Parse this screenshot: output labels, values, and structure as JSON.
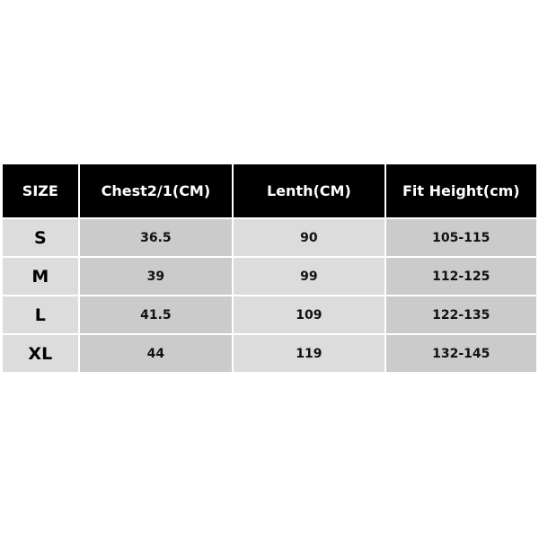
{
  "size_chart": {
    "headers": [
      "SIZE",
      "Chest2/1(CM)",
      "Lenth(CM)",
      "Fit Height(cm)"
    ],
    "rows": [
      [
        "S",
        "36.5",
        "90",
        "105-115"
      ],
      [
        "M",
        "39",
        "99",
        "112-125"
      ],
      [
        "L",
        "41.5",
        "109",
        "122-135"
      ],
      [
        "XL",
        "44",
        "119",
        "132-145"
      ]
    ]
  },
  "colors": {
    "header_bg": "#000000",
    "header_text": "#ffffff",
    "cell_light": "#dcdcdc",
    "cell_dark": "#cbcbcb"
  }
}
